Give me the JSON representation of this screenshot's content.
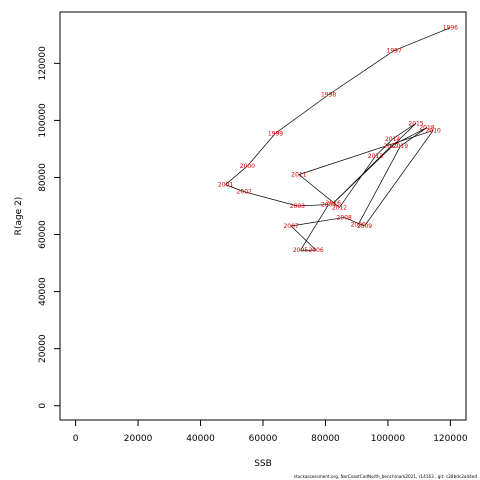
{
  "chart_data": {
    "type": "line",
    "xlabel": "SSB",
    "ylabel": "R(age 2)",
    "xlim": [
      -5000,
      125000
    ],
    "ylim": [
      -5000,
      138000
    ],
    "x_ticks": [
      0,
      20000,
      40000,
      60000,
      80000,
      100000,
      120000
    ],
    "x_tick_labels": [
      "0",
      "20000",
      "40000",
      "60000",
      "80000",
      "100000",
      "120000"
    ],
    "y_ticks": [
      0,
      20000,
      40000,
      60000,
      80000,
      100000,
      120000
    ],
    "y_tick_labels": [
      "0",
      "20000",
      "40000",
      "60000",
      "80000",
      "100000",
      "120000"
    ],
    "grid": false,
    "line_color": "#000000",
    "label_color": "#e00000",
    "points": [
      {
        "year": "1996",
        "x": 120000,
        "y": 132500
      },
      {
        "year": "1997",
        "x": 102000,
        "y": 124500
      },
      {
        "year": "1998",
        "x": 81000,
        "y": 109000
      },
      {
        "year": "1999",
        "x": 64000,
        "y": 95500
      },
      {
        "year": "2000",
        "x": 55000,
        "y": 84000
      },
      {
        "year": "2001",
        "x": 48000,
        "y": 77500
      },
      {
        "year": "2002",
        "x": 54000,
        "y": 75000
      },
      {
        "year": "2003",
        "x": 71000,
        "y": 70000
      },
      {
        "year": "2004",
        "x": 81000,
        "y": 70500
      },
      {
        "year": "2005",
        "x": 72000,
        "y": 54500
      },
      {
        "year": "2006",
        "x": 77000,
        "y": 54500
      },
      {
        "year": "2007",
        "x": 69000,
        "y": 63000
      },
      {
        "year": "2008",
        "x": 86000,
        "y": 66000
      },
      {
        "year": "2009",
        "x": 92500,
        "y": 63000
      },
      {
        "year": "2010",
        "x": 114500,
        "y": 96500
      },
      {
        "year": "2011",
        "x": 71500,
        "y": 81000
      },
      {
        "year": "2012",
        "x": 84500,
        "y": 69500
      },
      {
        "year": "2013",
        "x": 96000,
        "y": 87500
      },
      {
        "year": "2014",
        "x": 101500,
        "y": 93500
      },
      {
        "year": "2015",
        "x": 109000,
        "y": 99000
      },
      {
        "year": "2016",
        "x": 82500,
        "y": 71000
      },
      {
        "year": "2017",
        "x": 101000,
        "y": 91000
      },
      {
        "year": "2018",
        "x": 112500,
        "y": 97500
      },
      {
        "year": "2019",
        "x": 104000,
        "y": 91000
      },
      {
        "year": "2020",
        "x": 90500,
        "y": 63500
      }
    ]
  },
  "footer_text": "stockassessment.org, NorCoastCodNorth_benchmark2021, r14163 ,  git: c28bdc2a44ed"
}
